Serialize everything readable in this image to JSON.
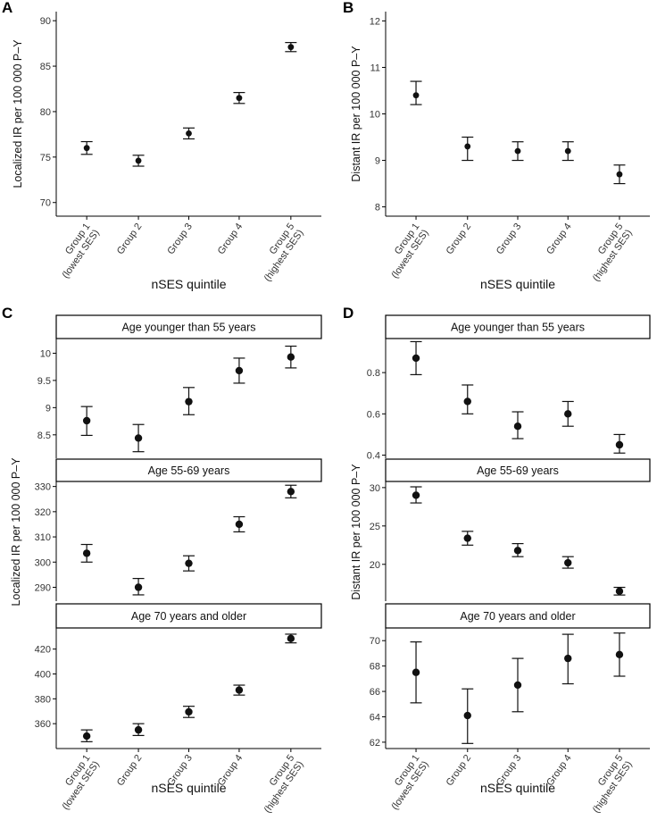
{
  "categories": [
    "Group 1|(lowest SES)",
    "Group 2",
    "Group 3",
    "Group 4",
    "Group 5|(highest SES)"
  ],
  "chart_data": [
    {
      "type": "scatter",
      "panel": "A",
      "xlabel": "nSES quintile",
      "ylabel": "Localized IR per 100 000 P–Y",
      "ylim": [
        68.5,
        91
      ],
      "yticks": [
        70,
        75,
        80,
        85,
        90
      ],
      "facets": [
        {
          "strip": "",
          "y": [
            76.0,
            74.6,
            77.6,
            81.5,
            87.1
          ],
          "lo": [
            75.3,
            74.0,
            77.0,
            80.9,
            86.6
          ],
          "hi": [
            76.7,
            75.2,
            78.2,
            82.1,
            87.6
          ]
        }
      ]
    },
    {
      "type": "scatter",
      "panel": "B",
      "xlabel": "nSES quintile",
      "ylabel": "Distant IR per 100 000 P–Y",
      "ylim": [
        7.8,
        12.2
      ],
      "yticks": [
        8,
        9,
        10,
        11,
        12
      ],
      "facets": [
        {
          "strip": "",
          "y": [
            10.4,
            9.3,
            9.2,
            9.2,
            8.7
          ],
          "lo": [
            10.2,
            9.0,
            9.0,
            9.0,
            8.5
          ],
          "hi": [
            10.7,
            9.5,
            9.4,
            9.4,
            8.9
          ]
        }
      ]
    },
    {
      "type": "scatter",
      "panel": "C",
      "xlabel": "nSES quintile",
      "ylabel": "Localized IR per 100 000 P–Y",
      "facets": [
        {
          "strip": "Age younger than 55 years",
          "ylim": [
            8.07,
            10.27
          ],
          "yticks": [
            8.5,
            9.0,
            9.5,
            10.0
          ],
          "y": [
            8.76,
            8.44,
            9.11,
            9.68,
            9.93
          ],
          "lo": [
            8.49,
            8.19,
            8.87,
            9.45,
            9.73
          ],
          "hi": [
            9.02,
            8.69,
            9.37,
            9.91,
            10.13
          ]
        },
        {
          "strip": "Age 55-69 years",
          "ylim": [
            284.5,
            332
          ],
          "yticks": [
            290,
            300,
            310,
            320,
            330
          ],
          "y": [
            303.5,
            290.0,
            299.5,
            315.0,
            328.0
          ],
          "lo": [
            300.0,
            287.0,
            296.5,
            312.0,
            325.5
          ],
          "hi": [
            307.0,
            293.5,
            302.5,
            318.0,
            330.5
          ]
        },
        {
          "strip": "Age 70 years and older",
          "ylim": [
            340,
            437
          ],
          "yticks": [
            360,
            380,
            400,
            420
          ],
          "y": [
            350.0,
            355.0,
            369.5,
            387.0,
            428.5
          ],
          "lo": [
            345.5,
            350.5,
            365.0,
            383.0,
            425.0
          ],
          "hi": [
            355.0,
            360.0,
            374.0,
            391.0,
            432.0
          ]
        }
      ]
    },
    {
      "type": "scatter",
      "panel": "D",
      "xlabel": "nSES quintile",
      "ylabel": "Distant IR per 100 000 P–Y",
      "facets": [
        {
          "strip": "Age younger than 55 years",
          "ylim": [
            0.385,
            0.965
          ],
          "yticks": [
            0.4,
            0.6,
            0.8
          ],
          "y": [
            0.87,
            0.66,
            0.54,
            0.6,
            0.45
          ],
          "lo": [
            0.79,
            0.6,
            0.48,
            0.54,
            0.41
          ],
          "hi": [
            0.95,
            0.74,
            0.61,
            0.66,
            0.5
          ]
        },
        {
          "strip": "Age 55-69 years",
          "ylim": [
            15.2,
            30.8
          ],
          "yticks": [
            20,
            25,
            30
          ],
          "y": [
            29.0,
            23.4,
            21.8,
            20.2,
            16.5
          ],
          "lo": [
            28.0,
            22.5,
            21.0,
            19.5,
            16.0
          ],
          "hi": [
            30.1,
            24.3,
            22.7,
            21.0,
            17.0
          ]
        },
        {
          "strip": "Age 70 years and older",
          "ylim": [
            61.5,
            71.0
          ],
          "yticks": [
            62,
            64,
            66,
            68,
            70
          ],
          "y": [
            67.5,
            64.1,
            66.5,
            68.6,
            68.9
          ],
          "lo": [
            65.1,
            61.9,
            64.4,
            66.6,
            67.2
          ],
          "hi": [
            69.9,
            66.2,
            68.6,
            70.5,
            70.6
          ]
        }
      ]
    }
  ]
}
